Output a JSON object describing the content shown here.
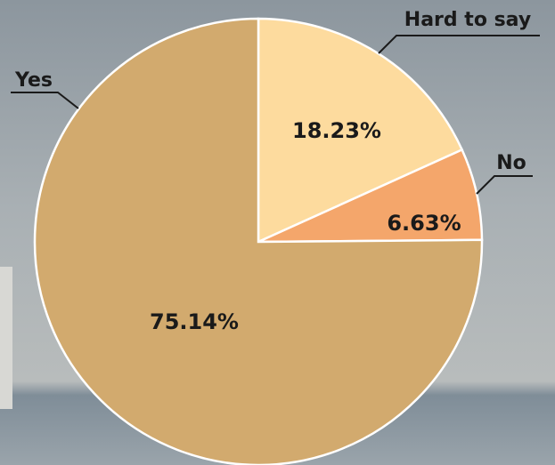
{
  "chart_data": {
    "type": "pie",
    "categories": [
      "Hard to say",
      "No",
      "Yes"
    ],
    "values": [
      18.23,
      6.63,
      75.14
    ],
    "value_labels": [
      "18.23%",
      "6.63%",
      "75.14%"
    ],
    "colors": [
      "#fddb9e",
      "#f4a66b",
      "#d2aa6e"
    ]
  }
}
